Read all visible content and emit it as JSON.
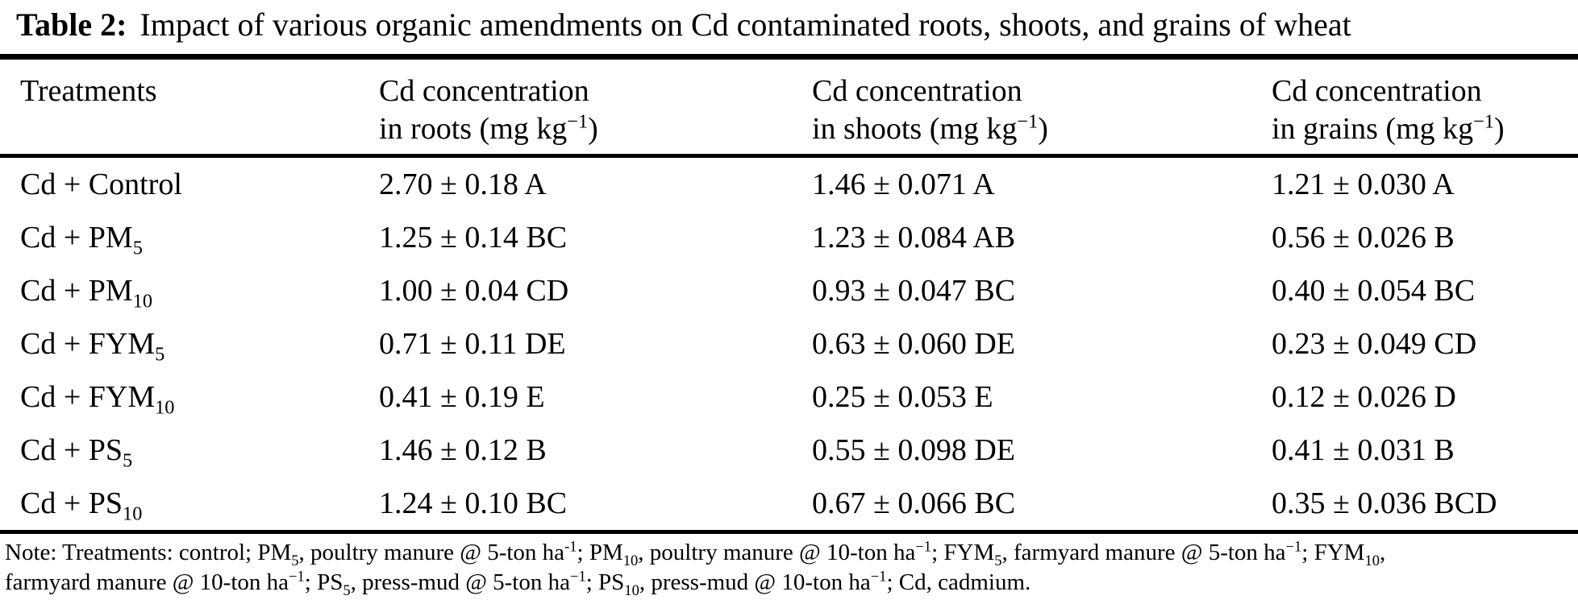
{
  "caption": {
    "label": "Table 2:",
    "text": "Impact of various organic amendments on Cd contaminated roots, shoots, and grains of wheat"
  },
  "table": {
    "headers": {
      "treatments": "Treatments",
      "roots_line1": "Cd concentration",
      "roots_line2": [
        {
          "t": "text",
          "v": "in roots (mg kg"
        },
        {
          "t": "sup",
          "v": "−1"
        },
        {
          "t": "text",
          "v": ")"
        }
      ],
      "shoots_line1": "Cd concentration",
      "shoots_line2": [
        {
          "t": "text",
          "v": "in shoots (mg kg"
        },
        {
          "t": "sup",
          "v": "−1"
        },
        {
          "t": "text",
          "v": ")"
        }
      ],
      "grains_line1": "Cd concentration",
      "grains_line2": [
        {
          "t": "text",
          "v": "in grains (mg kg"
        },
        {
          "t": "sup",
          "v": "−1"
        },
        {
          "t": "text",
          "v": ")"
        }
      ]
    },
    "rows": [
      {
        "treatment": [
          {
            "t": "text",
            "v": "Cd + Control"
          }
        ],
        "roots": "2.70 ± 0.18 A",
        "shoots": "1.46 ± 0.071 A",
        "grains": "1.21 ± 0.030 A"
      },
      {
        "treatment": [
          {
            "t": "text",
            "v": "Cd + PM"
          },
          {
            "t": "sub",
            "v": "5"
          }
        ],
        "roots": "1.25 ± 0.14 BC",
        "shoots": "1.23 ± 0.084 AB",
        "grains": "0.56 ± 0.026 B"
      },
      {
        "treatment": [
          {
            "t": "text",
            "v": "Cd + PM"
          },
          {
            "t": "sub",
            "v": "10"
          }
        ],
        "roots": "1.00 ± 0.04 CD",
        "shoots": "0.93 ± 0.047 BC",
        "grains": "0.40 ± 0.054 BC"
      },
      {
        "treatment": [
          {
            "t": "text",
            "v": "Cd + FYM"
          },
          {
            "t": "sub",
            "v": "5"
          }
        ],
        "roots": "0.71 ± 0.11 DE",
        "shoots": "0.63 ± 0.060 DE",
        "grains": "0.23 ± 0.049 CD"
      },
      {
        "treatment": [
          {
            "t": "text",
            "v": "Cd + FYM"
          },
          {
            "t": "sub",
            "v": "10"
          }
        ],
        "roots": "0.41 ± 0.19 E",
        "shoots": "0.25 ± 0.053 E",
        "grains": "0.12 ± 0.026 D"
      },
      {
        "treatment": [
          {
            "t": "text",
            "v": "Cd + PS"
          },
          {
            "t": "sub",
            "v": "5"
          }
        ],
        "roots": "1.46 ± 0.12 B",
        "shoots": "0.55 ± 0.098 DE",
        "grains": "0.41 ± 0.031 B"
      },
      {
        "treatment": [
          {
            "t": "text",
            "v": "Cd + PS"
          },
          {
            "t": "sub",
            "v": "10"
          }
        ],
        "roots": "1.24 ± 0.10 BC",
        "shoots": "0.67 ± 0.066 BC",
        "grains": "0.35 ± 0.036 BCD"
      }
    ]
  },
  "note": {
    "line1": [
      {
        "t": "text",
        "v": "Note: Treatments: control; PM"
      },
      {
        "t": "sub",
        "v": "5"
      },
      {
        "t": "text",
        "v": ", poultry manure @ 5-ton ha"
      },
      {
        "t": "sup",
        "v": "-1"
      },
      {
        "t": "text",
        "v": "; PM"
      },
      {
        "t": "sub",
        "v": "10"
      },
      {
        "t": "text",
        "v": ", poultry manure @ 10-ton ha"
      },
      {
        "t": "sup",
        "v": "−1"
      },
      {
        "t": "text",
        "v": "; FYM"
      },
      {
        "t": "sub",
        "v": "5"
      },
      {
        "t": "text",
        "v": ", farmyard manure @ 5-ton ha"
      },
      {
        "t": "sup",
        "v": "−1"
      },
      {
        "t": "text",
        "v": "; FYM"
      },
      {
        "t": "sub",
        "v": "10"
      },
      {
        "t": "text",
        "v": ","
      }
    ],
    "line2": [
      {
        "t": "text",
        "v": "farmyard manure @ 10-ton ha"
      },
      {
        "t": "sup",
        "v": "−1"
      },
      {
        "t": "text",
        "v": "; PS"
      },
      {
        "t": "sub",
        "v": "5"
      },
      {
        "t": "text",
        "v": ", press-mud @ 5-ton ha"
      },
      {
        "t": "sup",
        "v": "−1"
      },
      {
        "t": "text",
        "v": "; PS"
      },
      {
        "t": "sub",
        "v": "10"
      },
      {
        "t": "text",
        "v": ", press-mud @ 10-ton ha"
      },
      {
        "t": "sup",
        "v": "−1"
      },
      {
        "t": "text",
        "v": "; Cd, cadmium."
      }
    ]
  }
}
